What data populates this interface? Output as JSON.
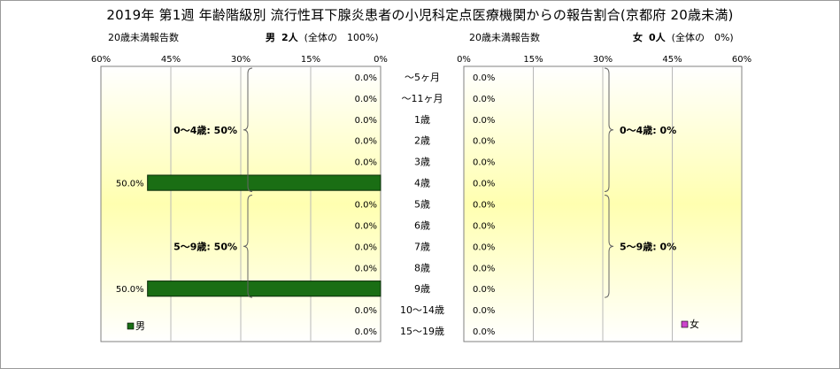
{
  "title": "2019年 第1週 年齢階級別 流行性耳下腺炎患者の小児科定点医療機関からの報告割合(京都府 20歳未満)",
  "left_panel": {
    "caption": "20歳未満報告数",
    "sex": "男",
    "count": "2人",
    "share": "(全体の　100%)"
  },
  "right_panel": {
    "caption": "20歳未満報告数",
    "sex": "女",
    "count": "0人",
    "share": "(全体の　0%)"
  },
  "colors": {
    "male": "#1a6e14",
    "female": "#cc44cc",
    "bg_top": "#ffffff",
    "bg_mid": "#ffffb0"
  },
  "chart_data": {
    "type": "bar",
    "orientation": "horizontal-butterfly",
    "categories": [
      "～5ヶ月",
      "～11ヶ月",
      "1歳",
      "2歳",
      "3歳",
      "4歳",
      "5歳",
      "6歳",
      "7歳",
      "8歳",
      "9歳",
      "10～14歳",
      "15～19歳"
    ],
    "series": [
      {
        "name": "男",
        "values": [
          0.0,
          0.0,
          0.0,
          0.0,
          0.0,
          50.0,
          0.0,
          0.0,
          0.0,
          0.0,
          50.0,
          0.0,
          0.0
        ],
        "labels": [
          "0.0%",
          "0.0%",
          "0.0%",
          "0.0%",
          "0.0%",
          "50.0%",
          "0.0%",
          "0.0%",
          "0.0%",
          "0.0%",
          "50.0%",
          "0.0%",
          "0.0%"
        ]
      },
      {
        "name": "女",
        "values": [
          0.0,
          0.0,
          0.0,
          0.0,
          0.0,
          0.0,
          0.0,
          0.0,
          0.0,
          0.0,
          0.0,
          0.0,
          0.0
        ],
        "labels": [
          "0.0%",
          "0.0%",
          "0.0%",
          "0.0%",
          "0.0%",
          "0.0%",
          "0.0%",
          "0.0%",
          "0.0%",
          "0.0%",
          "0.0%",
          "0.0%",
          "0.0%"
        ]
      }
    ],
    "xlim": [
      0,
      60
    ],
    "ticks": [
      0,
      15,
      30,
      45,
      60
    ],
    "left_tick_labels": [
      "60%",
      "45%",
      "30%",
      "15%",
      "0%"
    ],
    "right_tick_labels": [
      "0%",
      "15%",
      "30%",
      "45%",
      "60%"
    ],
    "group_annotations": {
      "male": [
        {
          "label": "0～4歳: 50%",
          "from": 0,
          "to": 5
        },
        {
          "label": "5～9歳: 50%",
          "from": 6,
          "to": 10
        }
      ],
      "female": [
        {
          "label": "0～4歳: 0%",
          "from": 0,
          "to": 5
        },
        {
          "label": "5～9歳: 0%",
          "from": 6,
          "to": 10
        }
      ]
    },
    "legend": {
      "male": "男",
      "female": "女"
    },
    "grid": true
  }
}
